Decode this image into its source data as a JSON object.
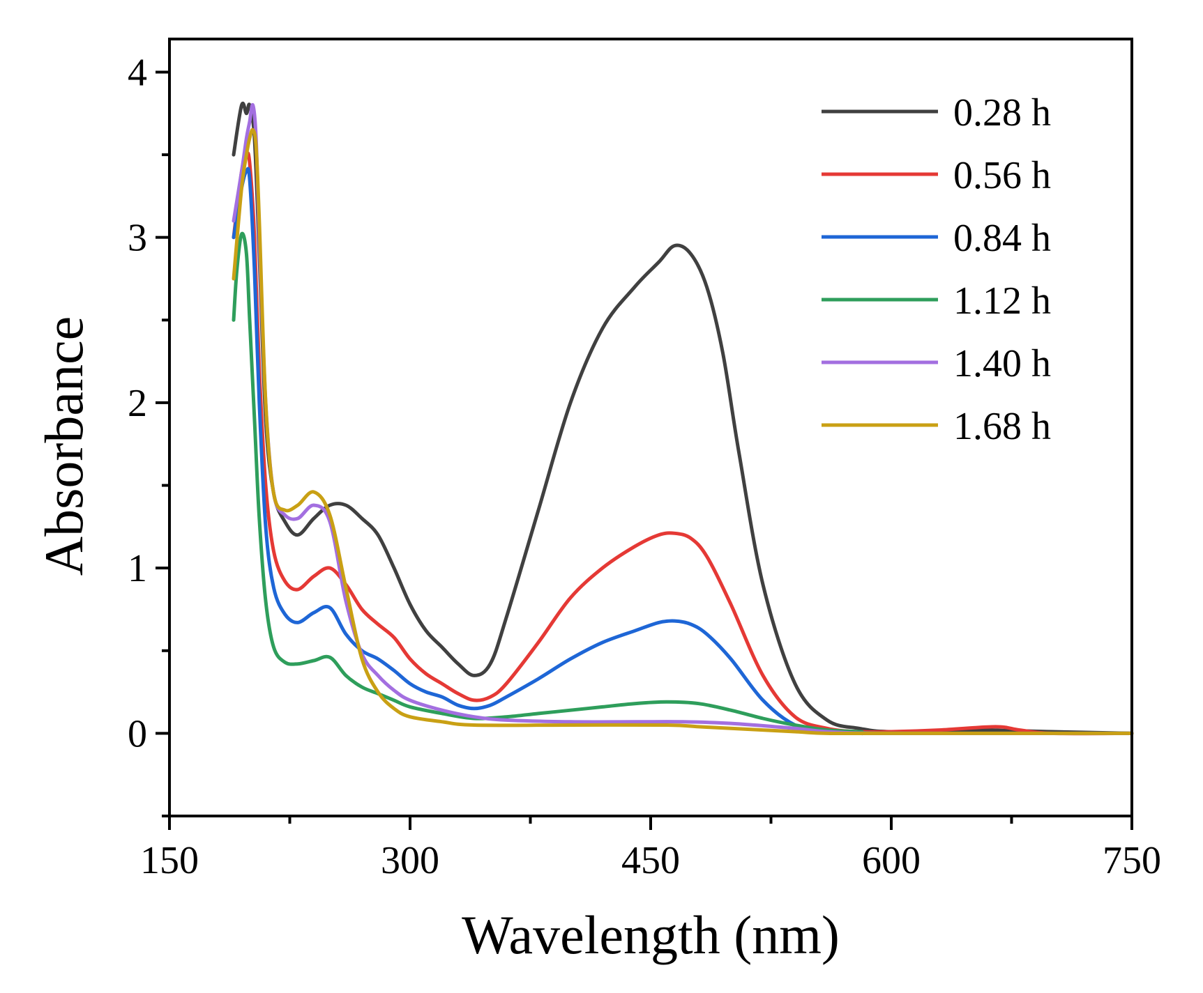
{
  "chart_data": {
    "type": "line",
    "title": "",
    "xlabel": "Wavelength (nm)",
    "ylabel": "Absorbance",
    "xlim": [
      150,
      750
    ],
    "ylim": [
      -0.5,
      4.2
    ],
    "xticks": [
      150,
      300,
      450,
      600,
      750
    ],
    "xtick_labels": [
      "150",
      "300",
      "450",
      "600",
      "750"
    ],
    "yticks": [
      0,
      1,
      2,
      3,
      4
    ],
    "ytick_labels": [
      "0",
      "1",
      "2",
      "3",
      "4"
    ],
    "grid": false,
    "legend_position": "top-right",
    "series": [
      {
        "name": "0.28 h",
        "color": "#404040",
        "x": [
          190,
          195,
          198,
          200,
          203,
          206,
          210,
          215,
          222,
          230,
          240,
          250,
          260,
          270,
          280,
          290,
          300,
          310,
          320,
          330,
          340,
          350,
          360,
          380,
          400,
          420,
          440,
          455,
          465,
          475,
          485,
          495,
          505,
          520,
          540,
          560,
          580,
          600,
          650,
          700,
          750
        ],
        "y": [
          3.5,
          3.8,
          3.75,
          3.8,
          3.6,
          2.9,
          1.9,
          1.45,
          1.28,
          1.2,
          1.3,
          1.38,
          1.38,
          1.3,
          1.2,
          1.0,
          0.78,
          0.62,
          0.52,
          0.42,
          0.35,
          0.42,
          0.7,
          1.35,
          2.0,
          2.45,
          2.7,
          2.85,
          2.95,
          2.9,
          2.7,
          2.3,
          1.7,
          0.9,
          0.3,
          0.08,
          0.03,
          0.01,
          0.02,
          0.01,
          0.0
        ]
      },
      {
        "name": "0.56 h",
        "color": "#e53935",
        "x": [
          190,
          195,
          198,
          200,
          203,
          206,
          210,
          215,
          222,
          230,
          240,
          250,
          260,
          270,
          280,
          290,
          300,
          310,
          320,
          330,
          340,
          350,
          360,
          380,
          400,
          420,
          440,
          455,
          465,
          475,
          485,
          500,
          520,
          540,
          560,
          580,
          600,
          630,
          665,
          680,
          700,
          750
        ],
        "y": [
          3.0,
          3.4,
          3.5,
          3.45,
          3.0,
          2.2,
          1.5,
          1.1,
          0.92,
          0.87,
          0.95,
          1.0,
          0.9,
          0.75,
          0.66,
          0.58,
          0.45,
          0.36,
          0.3,
          0.24,
          0.2,
          0.22,
          0.3,
          0.55,
          0.82,
          1.0,
          1.13,
          1.2,
          1.21,
          1.18,
          1.07,
          0.78,
          0.35,
          0.1,
          0.03,
          0.01,
          0.01,
          0.02,
          0.04,
          0.02,
          0.0,
          0.0
        ]
      },
      {
        "name": "0.84 h",
        "color": "#1e66d6",
        "x": [
          190,
          195,
          198,
          200,
          203,
          206,
          210,
          215,
          222,
          230,
          240,
          250,
          260,
          270,
          280,
          290,
          300,
          310,
          320,
          330,
          340,
          350,
          360,
          380,
          400,
          420,
          440,
          455,
          465,
          475,
          485,
          500,
          520,
          540,
          560,
          580,
          600,
          750
        ],
        "y": [
          3.0,
          3.3,
          3.4,
          3.35,
          2.8,
          2.0,
          1.25,
          0.88,
          0.72,
          0.67,
          0.73,
          0.76,
          0.6,
          0.5,
          0.45,
          0.38,
          0.3,
          0.25,
          0.22,
          0.17,
          0.15,
          0.17,
          0.22,
          0.33,
          0.45,
          0.55,
          0.62,
          0.67,
          0.68,
          0.66,
          0.6,
          0.45,
          0.2,
          0.05,
          0.01,
          0.0,
          0.0,
          0.0
        ]
      },
      {
        "name": "1.12 h",
        "color": "#2e9e5b",
        "x": [
          190,
          192,
          195,
          198,
          200,
          203,
          206,
          210,
          215,
          222,
          230,
          240,
          250,
          260,
          270,
          280,
          290,
          300,
          320,
          340,
          360,
          380,
          400,
          420,
          440,
          460,
          480,
          500,
          520,
          540,
          560,
          580,
          600,
          750
        ],
        "y": [
          2.5,
          2.8,
          3.02,
          2.9,
          2.5,
          1.9,
          1.3,
          0.8,
          0.52,
          0.43,
          0.42,
          0.44,
          0.46,
          0.35,
          0.28,
          0.24,
          0.2,
          0.16,
          0.12,
          0.09,
          0.1,
          0.12,
          0.14,
          0.16,
          0.18,
          0.19,
          0.18,
          0.14,
          0.09,
          0.05,
          0.02,
          0.01,
          0.0,
          0.0
        ]
      },
      {
        "name": "1.40 h",
        "color": "#a36fe0",
        "x": [
          190,
          195,
          198,
          200,
          202,
          204,
          206,
          210,
          215,
          222,
          230,
          240,
          250,
          260,
          270,
          280,
          290,
          300,
          320,
          340,
          360,
          400,
          440,
          470,
          500,
          540,
          560,
          600,
          750
        ],
        "y": [
          3.1,
          3.4,
          3.6,
          3.7,
          3.8,
          3.6,
          3.0,
          2.0,
          1.45,
          1.32,
          1.3,
          1.38,
          1.28,
          0.8,
          0.48,
          0.35,
          0.26,
          0.2,
          0.14,
          0.1,
          0.08,
          0.07,
          0.07,
          0.07,
          0.06,
          0.03,
          0.01,
          0.0,
          0.0
        ]
      },
      {
        "name": "1.68 h",
        "color": "#c9a014",
        "x": [
          190,
          195,
          198,
          200,
          202,
          204,
          206,
          210,
          215,
          222,
          230,
          240,
          250,
          260,
          270,
          280,
          290,
          300,
          320,
          340,
          400,
          460,
          480,
          500,
          540,
          560,
          600,
          750
        ],
        "y": [
          2.75,
          3.3,
          3.5,
          3.6,
          3.65,
          3.55,
          3.1,
          2.0,
          1.45,
          1.35,
          1.38,
          1.46,
          1.32,
          0.88,
          0.45,
          0.25,
          0.15,
          0.1,
          0.07,
          0.05,
          0.05,
          0.05,
          0.04,
          0.03,
          0.01,
          0.0,
          0.0,
          0.0
        ]
      }
    ]
  }
}
